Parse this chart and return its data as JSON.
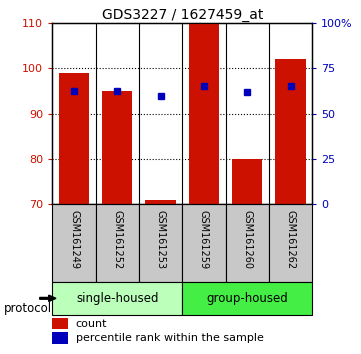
{
  "title": "GDS3227 / 1627459_at",
  "samples": [
    "GSM161249",
    "GSM161252",
    "GSM161253",
    "GSM161259",
    "GSM161260",
    "GSM161262"
  ],
  "bar_values": [
    99,
    95,
    71,
    110,
    80,
    102
  ],
  "bar_baseline": 70,
  "percentile_ranks": [
    62.5,
    62.5,
    60,
    65,
    62,
    65
  ],
  "ylim_left": [
    70,
    110
  ],
  "ylim_right": [
    0,
    100
  ],
  "yticks_left": [
    70,
    80,
    90,
    100,
    110
  ],
  "yticks_right": [
    0,
    25,
    50,
    75,
    100
  ],
  "ytick_labels_right": [
    "0",
    "25",
    "50",
    "75",
    "100%"
  ],
  "bar_color": "#CC1100",
  "percentile_color": "#0000BB",
  "groups": [
    {
      "label": "single-housed",
      "indices": [
        0,
        1,
        2
      ],
      "color": "#BBFFBB"
    },
    {
      "label": "group-housed",
      "indices": [
        3,
        4,
        5
      ],
      "color": "#44EE44"
    }
  ],
  "protocol_label": "protocol",
  "legend_count_label": "count",
  "legend_percentile_label": "percentile rank within the sample",
  "tick_label_color_left": "#CC1100",
  "tick_label_color_right": "#0000BB",
  "label_bg_color": "#C8C8C8",
  "label_border_color": "#000000"
}
